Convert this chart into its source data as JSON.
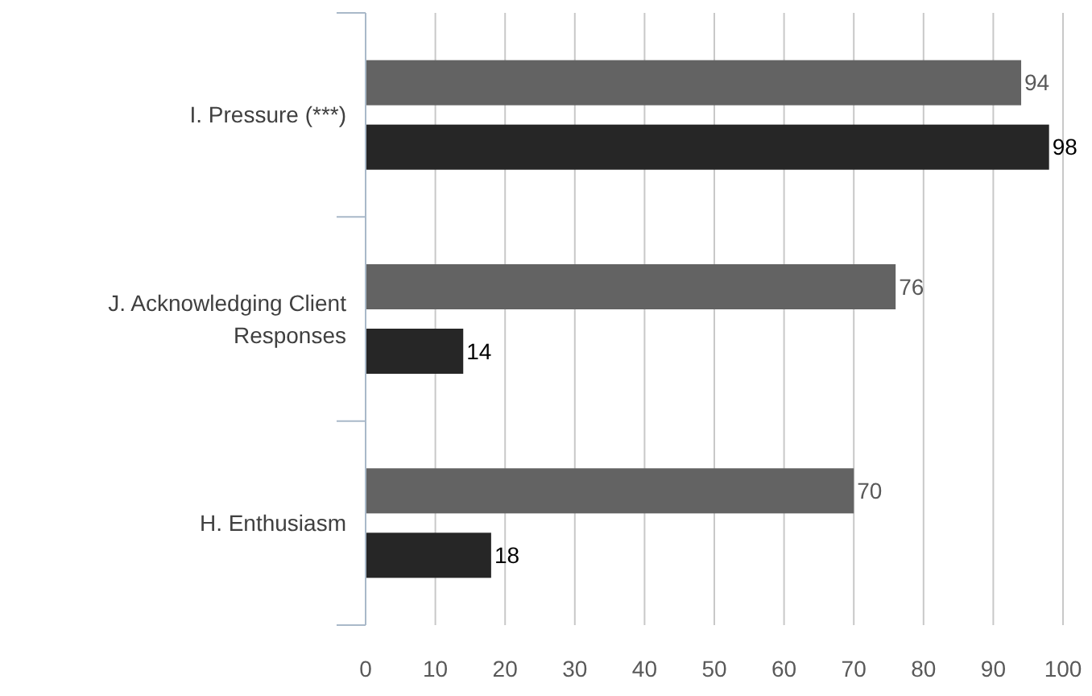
{
  "chart_data": {
    "type": "bar",
    "orientation": "horizontal",
    "categories": [
      "I. Pressure (***)",
      "J. Acknowledging Client Responses",
      "H. Enthusiasm"
    ],
    "series": [
      {
        "color": "#636363",
        "values": [
          94,
          76,
          70
        ]
      },
      {
        "color": "#262626",
        "values": [
          98,
          14,
          18
        ]
      }
    ],
    "xlim": [
      0,
      100
    ],
    "xticks": [
      0,
      10,
      20,
      30,
      40,
      50,
      60,
      70,
      80,
      90,
      100
    ],
    "grid": "x",
    "data_labels": true
  }
}
